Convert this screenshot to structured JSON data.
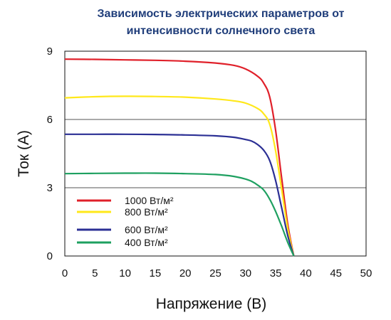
{
  "chart_data": {
    "type": "line",
    "title_lines": [
      "Зависимость электрических параметров от",
      "интенсивности солнечного света"
    ],
    "xlabel": "Напряжение (В)",
    "ylabel": "Ток (А)",
    "xlim": [
      0,
      50
    ],
    "ylim": [
      0,
      9
    ],
    "xticks": [
      0,
      5,
      10,
      15,
      20,
      25,
      30,
      35,
      40,
      45,
      50
    ],
    "yticks": [
      0,
      3,
      6,
      9
    ],
    "grid": "horizontal",
    "legend_position": "bottom-left",
    "series": [
      {
        "name": "1000 Вт/м²",
        "color": "#e0202a",
        "x": [
          0,
          5,
          10,
          15,
          20,
          25,
          28,
          30,
          32,
          33,
          34,
          35,
          36,
          37,
          38
        ],
        "y": [
          8.65,
          8.64,
          8.62,
          8.6,
          8.56,
          8.48,
          8.38,
          8.22,
          7.9,
          7.6,
          7.0,
          5.5,
          3.4,
          1.4,
          0
        ]
      },
      {
        "name": "800 Вт/м²",
        "color": "#ffe81a",
        "x": [
          0,
          5,
          10,
          15,
          20,
          25,
          28,
          30,
          32,
          33,
          34,
          35,
          36,
          37,
          38
        ],
        "y": [
          6.95,
          7.0,
          7.02,
          7.01,
          6.98,
          6.9,
          6.82,
          6.72,
          6.48,
          6.25,
          5.8,
          4.6,
          2.9,
          1.2,
          0
        ]
      },
      {
        "name": "600 Вт/м²",
        "color": "#2b2f94",
        "x": [
          0,
          5,
          10,
          15,
          20,
          25,
          28,
          30,
          31,
          32,
          33,
          34,
          35,
          36,
          37,
          38
        ],
        "y": [
          5.35,
          5.35,
          5.35,
          5.34,
          5.32,
          5.28,
          5.22,
          5.12,
          5.05,
          4.9,
          4.65,
          4.2,
          3.3,
          2.1,
          0.9,
          0
        ]
      },
      {
        "name": "400 Вт/м²",
        "color": "#1ea060",
        "x": [
          0,
          5,
          10,
          15,
          20,
          25,
          28,
          30,
          31,
          32,
          33,
          34,
          35,
          36,
          37,
          38
        ],
        "y": [
          3.62,
          3.63,
          3.64,
          3.64,
          3.62,
          3.58,
          3.5,
          3.38,
          3.28,
          3.12,
          2.9,
          2.5,
          1.95,
          1.3,
          0.6,
          0
        ]
      }
    ]
  }
}
